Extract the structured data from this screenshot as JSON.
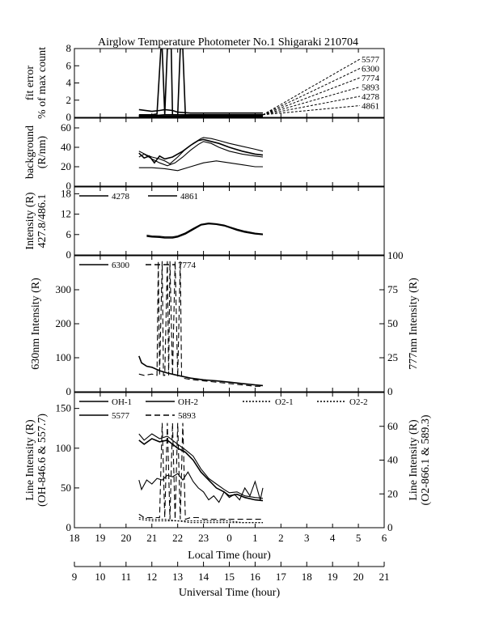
{
  "chart_data": {
    "type": "line",
    "title": "Airglow Temperature Photometer No.1  Shigaraki  210704",
    "local_time_axis": {
      "label": "Local Time (hour)",
      "range": [
        18,
        30
      ],
      "ticks": [
        "18",
        "19",
        "20",
        "21",
        "22",
        "23",
        "0",
        "1",
        "2",
        "3",
        "4",
        "5",
        "6"
      ]
    },
    "universal_time_axis": {
      "label": "Universal Time (hour)",
      "range": [
        9,
        21
      ],
      "ticks": [
        "9",
        "10",
        "11",
        "12",
        "13",
        "14",
        "15",
        "16",
        "17",
        "18",
        "19",
        "20",
        "21"
      ]
    },
    "panels": [
      {
        "id": "fit-error",
        "ylabel": [
          "fit error",
          "% of max count"
        ],
        "ylim": [
          0,
          8
        ],
        "yticks": [
          "0",
          "2",
          "4",
          "6",
          "8"
        ],
        "legend": [
          "5577",
          "6300",
          "7774",
          "5893",
          "4278",
          "4861"
        ],
        "series": [
          {
            "name": "5577",
            "dash": "none",
            "x": [
              20.5,
              21,
              21.3,
              21.5,
              21.8,
              22,
              22.5,
              23,
              24,
              25,
              25.3
            ],
            "y": [
              0.9,
              0.7,
              0.8,
              0.9,
              0.8,
              0.6,
              0.5,
              0.5,
              0.5,
              0.5,
              0.5
            ]
          },
          {
            "name": "6300",
            "dash": "none",
            "x": [
              20.5,
              20.8,
              21,
              21.2,
              21.35,
              21.4,
              21.5,
              21.6,
              21.75,
              21.8,
              22,
              22.2,
              22.5,
              23,
              24,
              25,
              25.3
            ],
            "y": [
              0.3,
              0.3,
              0.3,
              0.4,
              8,
              8,
              0.3,
              8,
              8,
              0.3,
              0.3,
              0.3,
              0.3,
              0.3,
              0.3,
              0.3,
              0.3
            ]
          },
          {
            "name": "7774",
            "dash": "none",
            "x": [
              20.5,
              21,
              21.5,
              21.7,
              22,
              22.1,
              22.2,
              22.3,
              22.5,
              23,
              24,
              25,
              25.3
            ],
            "y": [
              0.2,
              0.2,
              0.3,
              0.3,
              0.3,
              8,
              8,
              0.3,
              0.2,
              0.2,
              0.2,
              0.2,
              0.2
            ]
          },
          {
            "name": "5893",
            "dash": "none",
            "x": [
              20.5,
              21,
              21.2,
              21.4,
              21.5,
              21.6,
              21.8,
              22,
              22.5,
              23,
              24,
              25,
              25.3
            ],
            "y": [
              0.2,
              0.2,
              0.1,
              -0.8,
              -0.4,
              -1.6,
              -0.6,
              0.1,
              0.2,
              0.2,
              0.2,
              0.2,
              0.2
            ]
          },
          {
            "name": "4278",
            "dash": "none",
            "x": [
              20.5,
              21,
              22,
              23,
              24,
              25,
              25.3
            ],
            "y": [
              0.1,
              0.1,
              0.1,
              0.1,
              0.1,
              0.1,
              0.1
            ]
          },
          {
            "name": "4861",
            "dash": "none",
            "x": [
              20.5,
              21,
              22,
              23,
              24,
              25,
              25.3
            ],
            "y": [
              0.15,
              0.15,
              0.15,
              0.15,
              0.15,
              0.15,
              0.15
            ]
          }
        ]
      },
      {
        "id": "background",
        "ylabel": [
          "background",
          "(R/nm)"
        ],
        "ylim": [
          0,
          70
        ],
        "yticks": [
          "0",
          "20",
          "40",
          "60"
        ],
        "series": [
          {
            "name": "5577",
            "dash": "none",
            "x": [
              20.5,
              20.7,
              20.9,
              21.1,
              21.3,
              21.5,
              21.8,
              22.2,
              22.5,
              22.8,
              23,
              23.3,
              23.6,
              24,
              24.5,
              25,
              25.3
            ],
            "y": [
              34,
              29,
              31,
              24,
              31,
              28,
              30,
              36,
              42,
              47,
              48,
              46,
              44,
              40,
              36,
              33,
              32
            ]
          },
          {
            "name": "6300",
            "dash": "none",
            "x": [
              20.5,
              20.8,
              21,
              21.3,
              21.5,
              21.7,
              22,
              22.3,
              22.6,
              22.9,
              23,
              23.3,
              23.6,
              24,
              24.5,
              25,
              25.3
            ],
            "y": [
              36,
              32,
              30,
              28,
              26,
              23,
              30,
              38,
              44,
              49,
              50,
              49,
              47,
              44,
              41,
              38,
              36
            ]
          },
          {
            "name": "7774",
            "dash": "none",
            "x": [
              20.5,
              20.7,
              21,
              21.3,
              21.6,
              21.9,
              22.2,
              22.5,
              22.8,
              23,
              23.3,
              23.6,
              24,
              24.5,
              25,
              25.3
            ],
            "y": [
              30,
              33,
              28,
              24,
              21,
              24,
              30,
              37,
              43,
              46,
              44,
              40,
              36,
              33,
              31,
              30
            ]
          },
          {
            "name": "5893",
            "dash": "none",
            "x": [
              20.5,
              21,
              21.5,
              22,
              22.5,
              23,
              23.5,
              24,
              24.5,
              25,
              25.3
            ],
            "y": [
              19,
              19,
              18,
              16,
              20,
              24,
              26,
              24,
              22,
              20,
              20
            ]
          }
        ]
      },
      {
        "id": "intensity-4278-4861",
        "ylabel": [
          "Intensity (R)",
          "427.8/486.1"
        ],
        "ylim": [
          0,
          20
        ],
        "yticks": [
          "0",
          "6",
          "12",
          "18"
        ],
        "legend": [
          "4278",
          "4861"
        ],
        "series": [
          {
            "name": "4278",
            "dash": "none",
            "x": [
              20.8,
              21,
              21.3,
              21.5,
              21.8,
              22,
              22.3,
              22.6,
              22.9,
              23.2,
              23.5,
              23.8,
              24,
              24.3,
              24.6,
              25,
              25.3
            ],
            "y": [
              5.5,
              5.3,
              5.2,
              5.0,
              5.0,
              5.3,
              6.2,
              7.5,
              8.8,
              9.2,
              9.0,
              8.6,
              8.1,
              7.3,
              6.7,
              6.2,
              6.0
            ]
          },
          {
            "name": "4861",
            "dash": "none",
            "x": [
              20.8,
              21,
              21.3,
              21.5,
              21.8,
              22,
              22.3,
              22.6,
              22.9,
              23.2,
              23.5,
              23.8,
              24,
              24.3,
              24.6,
              25,
              25.3
            ],
            "y": [
              5.8,
              5.6,
              5.5,
              5.3,
              5.3,
              5.6,
              6.5,
              7.8,
              9.0,
              9.4,
              9.2,
              8.8,
              8.3,
              7.6,
              7.0,
              6.4,
              6.2
            ]
          }
        ]
      },
      {
        "id": "intensity-6300-7774",
        "ylabel": [
          "630nm Intensity (R)"
        ],
        "ylabel_right": [
          "777nm Intensity (R)"
        ],
        "ylim": [
          0,
          400
        ],
        "ylim_right": [
          0,
          100
        ],
        "yticks": [
          "0",
          "100",
          "200",
          "300"
        ],
        "yticks_right": [
          "0",
          "25",
          "50",
          "75",
          "100"
        ],
        "legend": [
          "6300",
          "7774"
        ],
        "series": [
          {
            "name": "6300",
            "dash": "none",
            "x": [
              20.5,
              20.6,
              20.8,
              21,
              21.3,
              21.6,
              22,
              22.5,
              23,
              23.5,
              24,
              24.5,
              25,
              25.3
            ],
            "y": [
              105,
              85,
              75,
              72,
              62,
              55,
              48,
              40,
              35,
              32,
              28,
              24,
              20,
              18
            ]
          },
          {
            "name": "7774",
            "dash": "dash",
            "axis": "right",
            "x": [
              20.5,
              20.7,
              21,
              21.2,
              21.25,
              21.3,
              21.4,
              21.45,
              21.5,
              21.6,
              21.65,
              21.7,
              21.8,
              21.9,
              22,
              22.1,
              22.15,
              22.2,
              22.5,
              23,
              23.5,
              24,
              24.5,
              25,
              25.3
            ],
            "y": [
              13,
              12,
              13,
              12,
              96,
              12,
              96,
              12,
              12,
              96,
              12,
              96,
              12,
              96,
              11,
              96,
              11,
              10,
              9,
              8,
              7,
              6,
              5,
              4,
              4
            ]
          }
        ]
      },
      {
        "id": "line-intensity",
        "ylabel": [
          "Line Intensity (R)",
          "(OH-846.6 & 557.7)"
        ],
        "ylabel_right": [
          "Line Intensity (R)",
          "(O2-866.1 & 589.3)"
        ],
        "ylim": [
          0,
          170
        ],
        "ylim_right": [
          0,
          80
        ],
        "yticks": [
          "0",
          "50",
          "100",
          "150"
        ],
        "yticks_right": [
          "0",
          "20",
          "40",
          "60"
        ],
        "legend": [
          "OH-1",
          "OH-2",
          "O2-1",
          "O2-2",
          "5577",
          "5893"
        ],
        "series": [
          {
            "name": "OH-1",
            "dash": "none",
            "x": [
              20.5,
              20.7,
              21,
              21.3,
              21.6,
              22,
              22.3,
              22.6,
              22.9,
              23.2,
              23.5,
              23.8,
              24,
              24.3,
              24.6,
              25,
              25.3
            ],
            "y": [
              110,
              105,
              112,
              108,
              110,
              100,
              95,
              85,
              70,
              60,
              50,
              45,
              40,
              42,
              38,
              35,
              34
            ]
          },
          {
            "name": "OH-2",
            "dash": "none",
            "x": [
              20.5,
              20.7,
              21,
              21.3,
              21.6,
              22,
              22.3,
              22.6,
              22.9,
              23.2,
              23.5,
              23.8,
              24,
              24.3,
              24.6,
              25,
              25.3
            ],
            "y": [
              118,
              110,
              118,
              112,
              115,
              105,
              98,
              90,
              74,
              62,
              55,
              48,
              44,
              45,
              40,
              38,
              37
            ]
          },
          {
            "name": "5577",
            "dash": "none",
            "x": [
              20.5,
              20.6,
              20.8,
              21,
              21.2,
              21.4,
              21.6,
              21.8,
              22,
              22.2,
              22.4,
              22.6,
              22.8,
              23,
              23.2,
              23.4,
              23.6,
              23.8,
              24,
              24.2,
              24.4,
              24.6,
              24.8,
              25,
              25.2,
              25.3
            ],
            "y": [
              60,
              48,
              60,
              55,
              62,
              60,
              66,
              64,
              68,
              60,
              70,
              58,
              50,
              45,
              35,
              40,
              32,
              45,
              38,
              42,
              35,
              50,
              40,
              58,
              35,
              50
            ]
          },
          {
            "name": "5893",
            "dash": "dash",
            "axis": "right",
            "x": [
              20.5,
              20.7,
              21,
              21.3,
              21.4,
              21.5,
              21.6,
              21.7,
              21.8,
              21.9,
              22,
              22.1,
              22.2,
              22.3,
              22.5,
              22.8,
              23,
              23.5,
              24,
              24.5,
              25,
              25.3
            ],
            "y": [
              8,
              6,
              6,
              6,
              62,
              6,
              62,
              5,
              62,
              5,
              62,
              5,
              62,
              5,
              6,
              6,
              5,
              5,
              5,
              5,
              5,
              5
            ]
          },
          {
            "name": "O2-1",
            "dash": "dot",
            "axis": "right",
            "x": [
              20.5,
              21,
              21.5,
              22,
              22.5,
              23,
              23.5,
              24,
              24.5,
              25,
              25.3
            ],
            "y": [
              6,
              5,
              5,
              4,
              4,
              4,
              4,
              4,
              3,
              3,
              3
            ]
          },
          {
            "name": "O2-2",
            "dash": "dot",
            "axis": "right",
            "x": [
              20.5,
              21,
              21.5,
              22,
              22.5,
              23,
              23.5,
              24,
              24.5,
              25,
              25.3
            ],
            "y": [
              5,
              4,
              4,
              4,
              3,
              3,
              3,
              3,
              3,
              3,
              3
            ]
          }
        ]
      }
    ]
  }
}
